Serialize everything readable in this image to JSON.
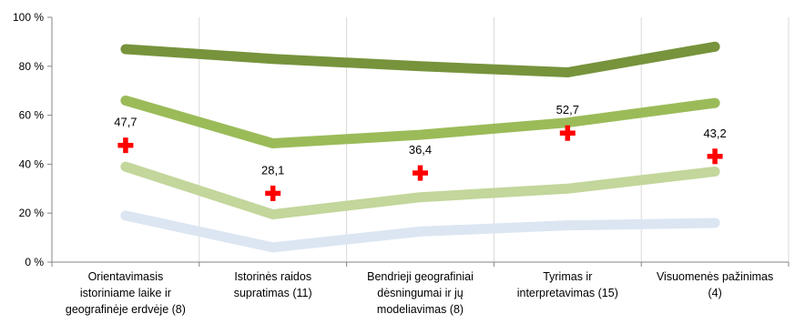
{
  "chart_data": {
    "type": "line",
    "title": "",
    "xlabel": "",
    "ylabel": "",
    "ylim": [
      0,
      100
    ],
    "y_ticks": [
      "0 %",
      "20 %",
      "40 %",
      "60 %",
      "80 %",
      "100 %"
    ],
    "grid": "vertical",
    "legend": "none",
    "categories": [
      "Orientavimasis istoriniame laike ir geografinėje erdvėje (8)",
      "Istorinės raidos supratimas (11)",
      "Bendrieji geografiniai dėsningumai ir jų modeliavimas (8)",
      "Tyrimas ir interpretavimas (15)",
      "Visuomenės pažinimas (4)"
    ],
    "category_lines": [
      [
        "Orientavimasis",
        "istoriniame laike ir",
        "geografinėje erdvėje (8)"
      ],
      [
        "Istorinės raidos",
        "supratimas (11)"
      ],
      [
        "Bendrieji geografiniai",
        "dėsningumai ir jų",
        "modeliavimas (8)"
      ],
      [
        "Tyrimas ir",
        "interpretavimas (15)"
      ],
      [
        "Visuomenės pažinimas",
        "(4)"
      ]
    ],
    "series": [
      {
        "values": [
          87,
          83,
          80,
          77.5,
          88
        ],
        "color": "#77933c"
      },
      {
        "values": [
          66,
          48.5,
          52,
          57,
          65
        ],
        "color": "#9bbb59"
      },
      {
        "values": [
          39,
          19.5,
          26.5,
          30,
          37
        ],
        "color": "#c3d69b"
      },
      {
        "values": [
          19,
          6,
          12.5,
          15,
          16
        ],
        "color": "#dce6f2"
      }
    ],
    "markers": {
      "symbol": "cross",
      "color": "#ff0000",
      "values": [
        47.7,
        28.1,
        36.4,
        52.7,
        43.2
      ],
      "labels": [
        "47,7",
        "28,1",
        "36,4",
        "52,7",
        "43,2"
      ]
    }
  }
}
